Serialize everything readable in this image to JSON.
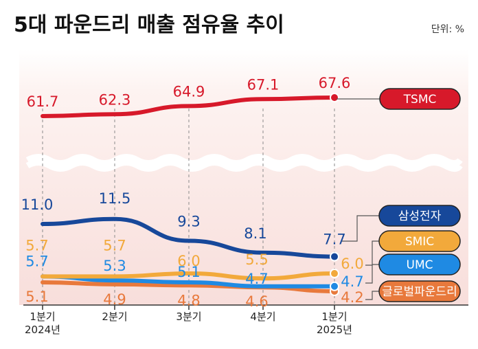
{
  "chart_data": {
    "type": "line",
    "title": "5대 파운드리 매출 점유율 추이",
    "unit": "단위: %",
    "categories": [
      [
        "1분기",
        "2024년"
      ],
      [
        "2분기"
      ],
      [
        "3분기"
      ],
      [
        "4분기"
      ],
      [
        "1분기",
        "2025년"
      ]
    ],
    "y_axis_break": true,
    "series": [
      {
        "name": "TSMC",
        "color": "#d7192a",
        "values": [
          61.7,
          62.3,
          64.9,
          67.1,
          67.6
        ],
        "labels": [
          "61.7",
          "62.3",
          "64.9",
          "67.1",
          "67.6"
        ]
      },
      {
        "name": "삼성전자",
        "color": "#17489a",
        "values": [
          11.0,
          11.5,
          9.3,
          8.1,
          7.7
        ],
        "labels": [
          "11.0",
          "11.5",
          "9.3",
          "8.1",
          "7.7"
        ]
      },
      {
        "name": "SMIC",
        "color": "#f2a93b",
        "values": [
          5.7,
          5.7,
          6.0,
          5.5,
          6.0
        ],
        "labels": [
          "5.7",
          "5.7",
          "6.0",
          "5.5",
          "6.0"
        ]
      },
      {
        "name": "UMC",
        "color": "#1f8ae3",
        "values": [
          5.7,
          5.3,
          5.1,
          4.7,
          4.7
        ],
        "labels": [
          "5.7",
          "5.3",
          "5.1",
          "4.7",
          "4.7"
        ]
      },
      {
        "name": "글로벌파운드리",
        "color": "#e8793c",
        "values": [
          5.1,
          4.9,
          4.8,
          4.6,
          4.2
        ],
        "labels": [
          "5.1",
          "4.9",
          "4.8",
          "4.6",
          "4.2"
        ]
      }
    ]
  }
}
